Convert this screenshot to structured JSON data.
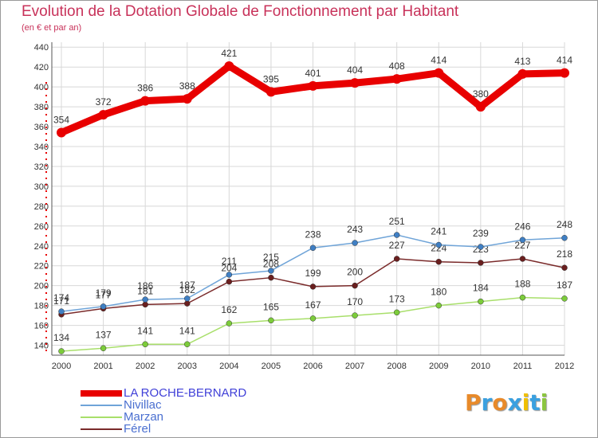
{
  "chart_data": {
    "type": "line",
    "title": "Evolution de la Dotation Globale de Fonctionnement par Habitant",
    "subtitle": "(en € et par an)",
    "x": [
      "2000",
      "2001",
      "2002",
      "2003",
      "2004",
      "2005",
      "2006",
      "2007",
      "2008",
      "2009",
      "2010",
      "2011",
      "2012"
    ],
    "ylim": [
      130,
      445
    ],
    "yticks": [
      140,
      160,
      180,
      200,
      220,
      240,
      260,
      280,
      300,
      320,
      340,
      360,
      380,
      400,
      420,
      440
    ],
    "series": [
      {
        "name": "LA ROCHE-BERNARD",
        "color": "#e80000",
        "values": [
          354,
          372,
          386,
          388,
          421,
          395,
          401,
          404,
          408,
          414,
          380,
          413,
          414
        ]
      },
      {
        "name": "Nivillac",
        "color": "#6fa4d8",
        "values": [
          174,
          179,
          186,
          187,
          211,
          215,
          238,
          243,
          251,
          241,
          239,
          246,
          248
        ]
      },
      {
        "name": "Marzan",
        "color": "#a8df6a",
        "values": [
          134,
          137,
          141,
          141,
          162,
          165,
          167,
          170,
          173,
          180,
          184,
          188,
          187
        ]
      },
      {
        "name": "Férel",
        "color": "#7a2a2a",
        "values": [
          171,
          177,
          181,
          182,
          204,
          208,
          199,
          200,
          227,
          224,
          223,
          227,
          218
        ]
      }
    ]
  },
  "legend_colors": {
    "LA ROCHE-BERNARD": "#4040d8",
    "Nivillac": "#4a6fd0",
    "Marzan": "#4a6fd0",
    "Férel": "#4a6fd0"
  },
  "logo": {
    "text": "Proxiti",
    "letters": [
      {
        "ch": "P",
        "color": "#e88a2a"
      },
      {
        "ch": "r",
        "color": "#3aa0e0"
      },
      {
        "ch": "o",
        "color": "#e88a2a"
      },
      {
        "ch": "x",
        "color": "#3aa0e0"
      },
      {
        "ch": "i",
        "color": "#f0c000"
      },
      {
        "ch": "t",
        "color": "#3aa0e0"
      },
      {
        "ch": "i",
        "color": "#8cc63f"
      }
    ]
  }
}
